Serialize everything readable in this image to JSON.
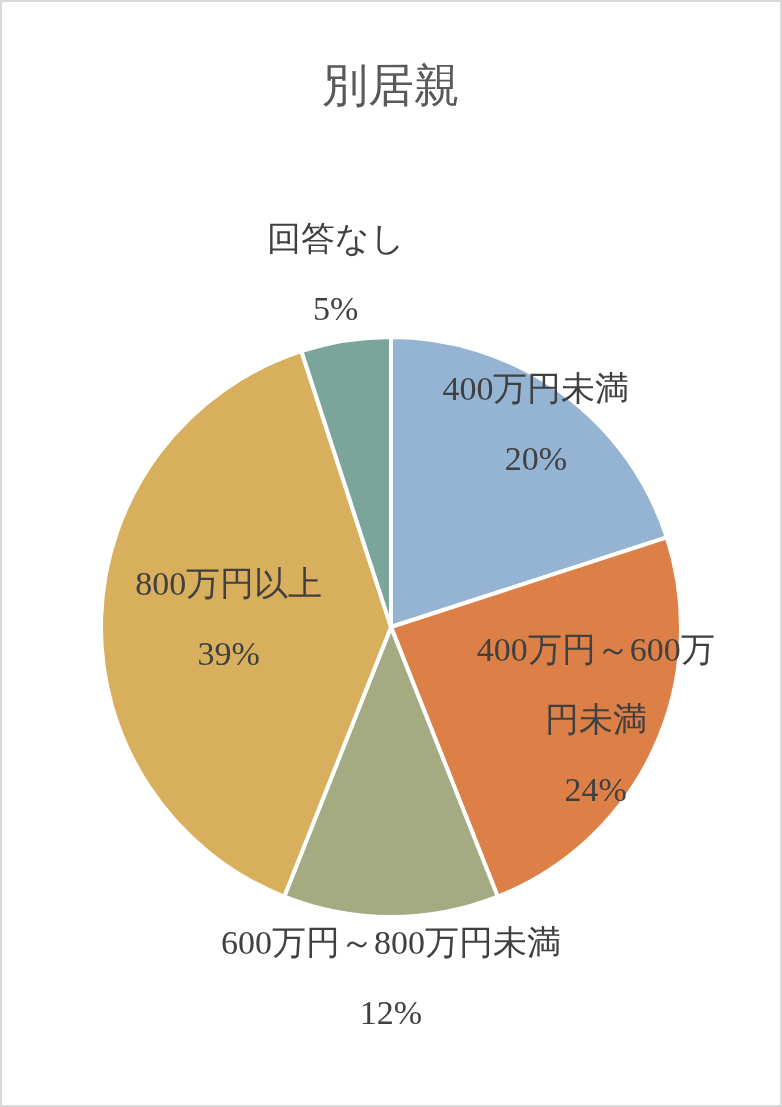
{
  "chart_data": {
    "type": "pie",
    "title": "別居親",
    "categories": [
      "400万円未満",
      "400万円～600万円未満",
      "600万円～800万円未満",
      "800万円以上",
      "回答なし"
    ],
    "values": [
      20,
      24,
      12,
      39,
      5
    ],
    "value_labels": [
      "20%",
      "24%",
      "12%",
      "39%",
      "5%"
    ],
    "colors": [
      "#95b3d3",
      "#dd8048",
      "#a4aa82",
      "#d8af5c",
      "#7ba59b"
    ]
  }
}
